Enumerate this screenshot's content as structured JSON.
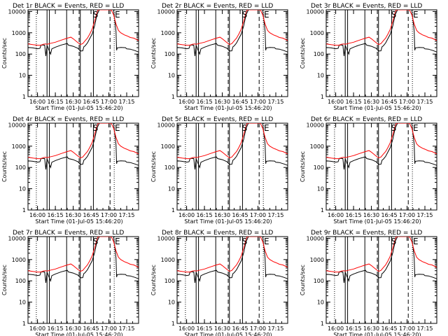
{
  "chart_data": [
    {
      "type": "line",
      "title": "Det 1r BLACK = Events, RED = LLD"
    },
    {
      "type": "line",
      "title": "Det 2r BLACK = Events, RED = LLD"
    },
    {
      "type": "line",
      "title": "Det 3r BLACK = Events, RED = LLD"
    },
    {
      "type": "line",
      "title": "Det 4r BLACK = Events, RED = LLD"
    },
    {
      "type": "line",
      "title": "Det 5r BLACK = Events, RED = LLD"
    },
    {
      "type": "line",
      "title": "Det 6r BLACK = Events, RED = LLD"
    },
    {
      "type": "line",
      "title": "Det 7r BLACK = Events, RED = LLD"
    },
    {
      "type": "line",
      "title": "Det 8r BLACK = Events, RED = LLD"
    },
    {
      "type": "line",
      "title": "Det 9r BLACK = Events, RED = LLD"
    }
  ],
  "shared": {
    "xlabel": "Start Time (01-Jul-05 15:46:20)",
    "ylabel": "Counts/sec",
    "xlim_min": [
      952,
      1045
    ],
    "ylim": [
      1,
      12000
    ],
    "yscale": "log",
    "x_ticks": [
      960,
      975,
      990,
      1005,
      1020,
      1035
    ],
    "x_tick_labels": [
      "16:00",
      "16:15",
      "16:30",
      "16:45",
      "17:00",
      "17:15"
    ],
    "y_ticks": [
      1,
      10,
      100,
      1000,
      10000
    ],
    "y_tick_labels": [
      "1",
      "10",
      "100",
      "1000",
      "10000"
    ],
    "marker_s_label": "S",
    "marker_e_label": "E",
    "marker_s_x": 1006.5,
    "marker_e_x": 1025,
    "vlines_solid": [
      968,
      970,
      984.5,
      996,
      1007
    ],
    "vlines_dotted": [
      959,
      1024.5
    ],
    "vlines_dashed": [
      995,
      1021
    ],
    "colors": {
      "events": "#000000",
      "lld": "#ff0000",
      "axes": "#000000"
    }
  },
  "series_events": [
    [
      952,
      205
    ],
    [
      956,
      195
    ],
    [
      960,
      178
    ],
    [
      962,
      185
    ],
    [
      963,
      265
    ],
    [
      966,
      262
    ],
    [
      967,
      80
    ],
    [
      968,
      255
    ],
    [
      971,
      100
    ],
    [
      972,
      175
    ],
    [
      975,
      210
    ],
    [
      980,
      265
    ],
    [
      985,
      315
    ],
    [
      986,
      262
    ],
    [
      990,
      232
    ],
    [
      994,
      185
    ],
    [
      996,
      140
    ],
    [
      998,
      142
    ],
    [
      999,
      220
    ],
    [
      1000,
      240
    ],
    [
      1002,
      330
    ],
    [
      1004,
      540
    ],
    [
      1006,
      880
    ],
    [
      1008,
      2100
    ],
    [
      1010,
      7000
    ],
    [
      1012,
      12000
    ],
    [
      1024,
      12000
    ],
    [
      1026,
      1200
    ],
    [
      1026.5,
      150
    ],
    [
      1027,
      195
    ],
    [
      1030,
      205
    ],
    [
      1034,
      200
    ],
    [
      1035,
      175
    ],
    [
      1038,
      170
    ],
    [
      1042,
      145
    ],
    [
      1045,
      125
    ]
  ],
  "series_lld": [
    [
      952,
      300
    ],
    [
      956,
      275
    ],
    [
      960,
      260
    ],
    [
      963,
      260
    ],
    [
      965,
      290
    ],
    [
      967,
      300
    ],
    [
      968,
      285
    ],
    [
      970,
      310
    ],
    [
      975,
      360
    ],
    [
      980,
      450
    ],
    [
      985,
      560
    ],
    [
      988,
      620
    ],
    [
      990,
      520
    ],
    [
      994,
      340
    ],
    [
      996,
      280
    ],
    [
      998,
      310
    ],
    [
      1000,
      420
    ],
    [
      1002,
      560
    ],
    [
      1004,
      880
    ],
    [
      1006,
      1500
    ],
    [
      1008,
      3500
    ],
    [
      1010,
      9000
    ],
    [
      1011,
      12000
    ],
    [
      1022,
      12000
    ],
    [
      1024,
      7000
    ],
    [
      1026,
      2600
    ],
    [
      1028,
      1300
    ],
    [
      1030,
      1000
    ],
    [
      1033,
      800
    ],
    [
      1035,
      720
    ],
    [
      1038,
      600
    ],
    [
      1041,
      560
    ],
    [
      1045,
      430
    ]
  ]
}
